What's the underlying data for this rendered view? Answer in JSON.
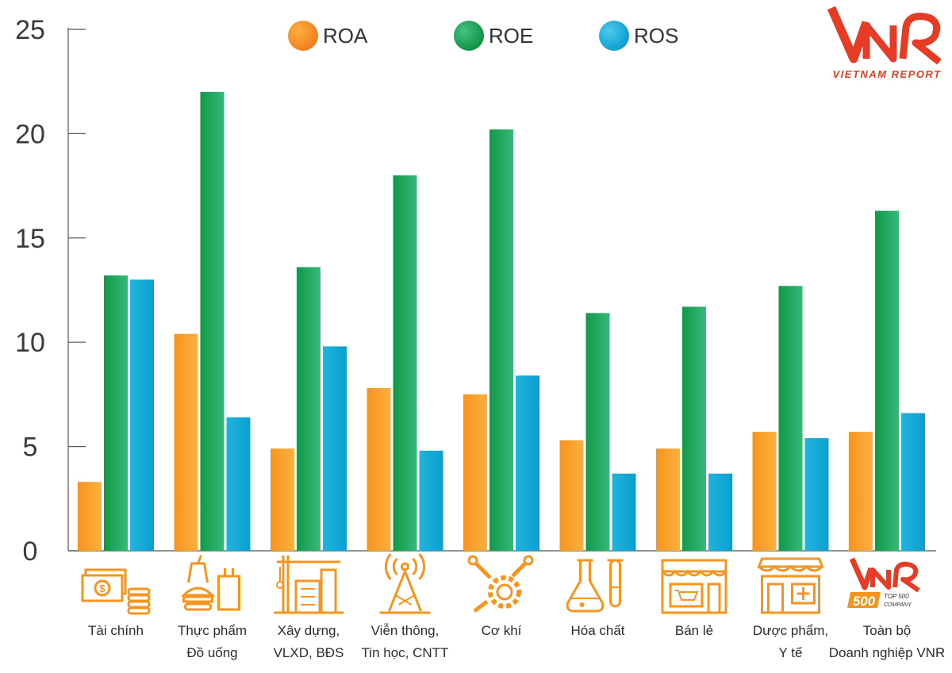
{
  "logo": {
    "mark": "VNR",
    "caption": "VIETNAM REPORT"
  },
  "badge": {
    "mark": "VNR",
    "number": "500",
    "caption_top": "TOP 500",
    "caption_bottom": "COMPANY"
  },
  "colors": {
    "ROA": "#f7941d",
    "ROE": "#1aa152",
    "ROS": "#1fb3dc",
    "axis": "#555555",
    "brand": "#e63c25",
    "icon": "#f7941d"
  },
  "chart_data": {
    "type": "bar",
    "categories": [
      [
        "Tài chính"
      ],
      [
        "Thực phẩm",
        "Đồ uống"
      ],
      [
        "Xây dựng,",
        "VLXD, BĐS"
      ],
      [
        "Viễn thông,",
        "Tin học, CNTT"
      ],
      [
        "Cơ khí"
      ],
      [
        "Hóa chất"
      ],
      [
        "Bán lẻ"
      ],
      [
        "Dược phẩm,",
        "Y tế"
      ],
      [
        "Toàn bộ",
        "Doanh nghiệp VNR"
      ]
    ],
    "category_icons": [
      "money-icon",
      "food-drink-icon",
      "construction-icon",
      "telecom-tower-icon",
      "gears-tools-icon",
      "chemistry-flask-icon",
      "retail-store-icon",
      "pharmacy-icon",
      "vnr500-badge-icon"
    ],
    "series": [
      {
        "name": "ROA",
        "values": [
          3.3,
          10.4,
          4.9,
          7.8,
          7.5,
          5.3,
          4.9,
          5.7,
          5.7
        ]
      },
      {
        "name": "ROE",
        "values": [
          13.2,
          22.0,
          13.6,
          18.0,
          20.2,
          11.4,
          11.7,
          12.7,
          16.3
        ]
      },
      {
        "name": "ROS",
        "values": [
          13.0,
          6.4,
          9.8,
          4.8,
          8.4,
          3.7,
          3.7,
          5.4,
          6.6
        ]
      }
    ],
    "y_ticks": [
      "0",
      "5",
      "10",
      "15",
      "20",
      "25"
    ],
    "ylim": [
      0,
      25
    ],
    "legend_position": "top-center",
    "grid": false
  }
}
